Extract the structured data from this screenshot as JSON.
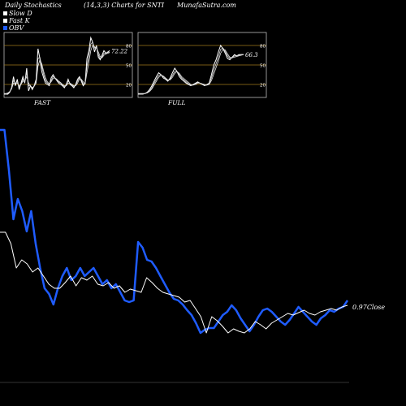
{
  "header": {
    "title": "Daily Stochastics",
    "params": "(14,3,3) Charts for SNTI",
    "source": "MunafaSutra.com"
  },
  "legend": [
    {
      "label": "Slow  D",
      "color": "#ffffff"
    },
    {
      "label": "Fast  K",
      "color": "#ffffff"
    },
    {
      "label": "OBV",
      "color": "#1f5cff"
    }
  ],
  "chart_data": [
    {
      "type": "line",
      "title": "FAST",
      "ylim": [
        0,
        100
      ],
      "ticks": [
        20,
        50,
        80
      ],
      "grid": true,
      "value_label": "72.22",
      "series": [
        {
          "values": [
            5,
            5,
            5,
            8,
            15,
            32,
            18,
            28,
            12,
            22,
            32,
            22,
            45,
            10,
            18,
            12,
            18,
            28,
            75,
            60,
            40,
            30,
            22,
            20,
            18,
            30,
            35,
            30,
            26,
            22,
            20,
            18,
            15,
            20,
            28,
            20,
            18,
            15,
            20,
            28,
            32,
            25,
            18,
            22,
            60,
            72,
            92,
            85,
            70,
            80,
            62,
            58,
            65,
            72,
            68,
            70,
            72
          ]
        },
        {
          "values": [
            5,
            5,
            6,
            9,
            14,
            26,
            22,
            24,
            16,
            20,
            28,
            24,
            38,
            18,
            18,
            14,
            18,
            24,
            60,
            62,
            48,
            35,
            26,
            22,
            20,
            26,
            32,
            30,
            27,
            24,
            22,
            19,
            17,
            19,
            25,
            22,
            19,
            17,
            19,
            25,
            30,
            27,
            21,
            21,
            48,
            65,
            82,
            85,
            76,
            78,
            66,
            60,
            62,
            68,
            68,
            69,
            70
          ]
        },
        {
          "values": [
            6,
            6,
            7,
            9,
            13,
            22,
            22,
            22,
            18,
            20,
            25,
            25,
            32,
            22,
            18,
            15,
            17,
            22,
            48,
            58,
            52,
            40,
            30,
            24,
            21,
            24,
            29,
            30,
            28,
            25,
            23,
            20,
            18,
            18,
            22,
            22,
            20,
            18,
            18,
            22,
            28,
            28,
            24,
            21,
            38,
            55,
            72,
            80,
            78,
            76,
            70,
            63,
            61,
            65,
            67,
            68,
            69
          ]
        }
      ]
    },
    {
      "type": "line",
      "title": "FULL",
      "ylim": [
        0,
        100
      ],
      "ticks": [
        20,
        50,
        80
      ],
      "grid": true,
      "value_label": "66.3",
      "series": [
        {
          "values": [
            5,
            5,
            5,
            6,
            8,
            12,
            18,
            25,
            32,
            38,
            35,
            30,
            28,
            25,
            30,
            38,
            45,
            40,
            32,
            28,
            25,
            22,
            20,
            18,
            20,
            22,
            24,
            22,
            20,
            18,
            20,
            22,
            35,
            50,
            58,
            70,
            80,
            75,
            68,
            60,
            58,
            62,
            66,
            64,
            66,
            66,
            66
          ]
        },
        {
          "values": [
            5,
            5,
            5,
            6,
            7,
            10,
            15,
            22,
            28,
            34,
            35,
            32,
            29,
            26,
            28,
            34,
            40,
            40,
            35,
            30,
            27,
            24,
            21,
            19,
            19,
            21,
            23,
            22,
            21,
            19,
            19,
            21,
            30,
            42,
            52,
            62,
            74,
            76,
            71,
            64,
            60,
            61,
            64,
            64,
            65,
            66,
            66
          ]
        },
        {
          "values": [
            6,
            6,
            6,
            6,
            7,
            9,
            13,
            19,
            25,
            31,
            34,
            33,
            30,
            27,
            27,
            31,
            37,
            40,
            37,
            32,
            29,
            26,
            23,
            20,
            19,
            20,
            22,
            22,
            21,
            20,
            19,
            20,
            26,
            36,
            46,
            56,
            68,
            74,
            73,
            67,
            62,
            61,
            62,
            63,
            64,
            65,
            66
          ]
        }
      ]
    },
    {
      "type": "line",
      "title": "",
      "value_label": "0.97",
      "value_label_suffix": "Close",
      "series": [
        {
          "name": "OBV",
          "color": "#1f5cff",
          "values": [
            160,
            160,
            210,
            270,
            245,
            260,
            285,
            260,
            300,
            330,
            355,
            362,
            375,
            355,
            340,
            330,
            345,
            340,
            330,
            340,
            335,
            330,
            340,
            350,
            345,
            355,
            350,
            360,
            370,
            372,
            370,
            298,
            305,
            320,
            322,
            330,
            340,
            350,
            360,
            368,
            370,
            375,
            382,
            388,
            398,
            410,
            406,
            404,
            404,
            396,
            388,
            384,
            376,
            382,
            392,
            400,
            408,
            400,
            390,
            382,
            380,
            384,
            390,
            396,
            400,
            394,
            386,
            378,
            384,
            390,
            396,
            400,
            392,
            388,
            382,
            384,
            380,
            378,
            370
          ]
        },
        {
          "name": "Price",
          "color": "#ffffff",
          "values": [
            286,
            286,
            300,
            330,
            320,
            325,
            335,
            330,
            340,
            350,
            355,
            355,
            348,
            340,
            352,
            342,
            345,
            340,
            350,
            352,
            348,
            355,
            352,
            360,
            356,
            358,
            360,
            342,
            348,
            355,
            360,
            362,
            364,
            366,
            372,
            370,
            380,
            390,
            410,
            390,
            395,
            402,
            410,
            405,
            408,
            410,
            405,
            396,
            400,
            405,
            398,
            394,
            390,
            386,
            388,
            385,
            382,
            386,
            388,
            384,
            382,
            380,
            382,
            378,
            376
          ]
        }
      ]
    }
  ]
}
